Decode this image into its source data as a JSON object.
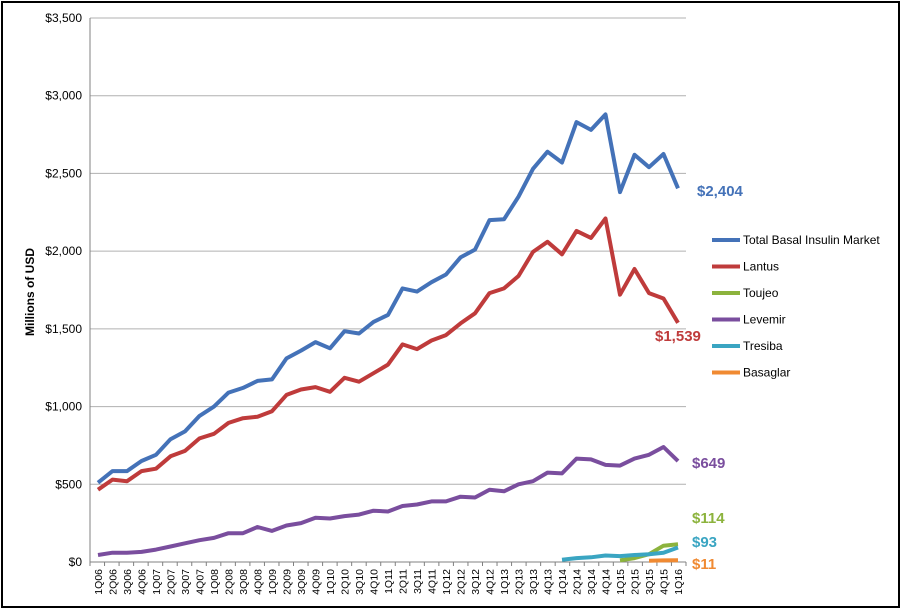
{
  "chart_data": {
    "type": "line",
    "title": "",
    "xlabel": "",
    "ylabel": "Millions of USD",
    "ylim": [
      0,
      3500
    ],
    "yticks": [
      0,
      500,
      1000,
      1500,
      2000,
      2500,
      3000,
      3500
    ],
    "ytick_labels": [
      "$0",
      "$500",
      "$1,000",
      "$1,500",
      "$2,000",
      "$2,500",
      "$3,000",
      "$3,500"
    ],
    "grid": "horizontal",
    "legend_position": "right",
    "categories": [
      "1Q06",
      "2Q06",
      "3Q06",
      "4Q06",
      "1Q07",
      "2Q07",
      "3Q07",
      "4Q07",
      "1Q08",
      "2Q08",
      "3Q08",
      "4Q08",
      "1Q09",
      "2Q09",
      "3Q09",
      "4Q09",
      "1Q10",
      "2Q10",
      "3Q10",
      "4Q10",
      "1Q11",
      "2Q11",
      "3Q11",
      "4Q11",
      "1Q12",
      "2Q12",
      "3Q12",
      "4Q12",
      "1Q13",
      "2Q13",
      "3Q13",
      "4Q13",
      "1Q14",
      "2Q14",
      "3Q14",
      "4Q14",
      "1Q15",
      "2Q15",
      "3Q15",
      "4Q15",
      "1Q16"
    ],
    "series": [
      {
        "name": "Total Basal Insulin Market",
        "color": "#4472b8",
        "end_label": "$2,404",
        "values": [
          510,
          585,
          585,
          650,
          690,
          790,
          840,
          940,
          1000,
          1090,
          1120,
          1165,
          1175,
          1310,
          1360,
          1415,
          1375,
          1485,
          1470,
          1545,
          1590,
          1760,
          1740,
          1800,
          1850,
          1960,
          2010,
          2200,
          2205,
          2350,
          2530,
          2640,
          2570,
          2830,
          2780,
          2880,
          2380,
          2620,
          2540,
          2625,
          2404
        ]
      },
      {
        "name": "Lantus",
        "color": "#bf3b3b",
        "end_label": "$1,539",
        "values": [
          465,
          530,
          520,
          585,
          600,
          680,
          715,
          795,
          825,
          895,
          925,
          935,
          970,
          1075,
          1110,
          1125,
          1095,
          1185,
          1160,
          1215,
          1270,
          1400,
          1370,
          1425,
          1460,
          1535,
          1600,
          1730,
          1760,
          1840,
          1995,
          2060,
          1980,
          2130,
          2085,
          2210,
          1720,
          1885,
          1730,
          1695,
          1539
        ]
      },
      {
        "name": "Toujeo",
        "color": "#8cb33d",
        "end_label": "$114",
        "values": [
          null,
          null,
          null,
          null,
          null,
          null,
          null,
          null,
          null,
          null,
          null,
          null,
          null,
          null,
          null,
          null,
          null,
          null,
          null,
          null,
          null,
          null,
          null,
          null,
          null,
          null,
          null,
          null,
          null,
          null,
          null,
          null,
          null,
          null,
          null,
          null,
          10,
          25,
          50,
          105,
          114
        ]
      },
      {
        "name": "Levemir",
        "color": "#7a4e9e",
        "end_label": "$649",
        "values": [
          45,
          60,
          60,
          65,
          80,
          100,
          120,
          140,
          155,
          185,
          185,
          225,
          200,
          235,
          250,
          285,
          280,
          295,
          305,
          330,
          325,
          360,
          370,
          390,
          390,
          420,
          415,
          465,
          455,
          500,
          520,
          575,
          570,
          665,
          660,
          625,
          620,
          665,
          690,
          740,
          649
        ]
      },
      {
        "name": "Tresiba",
        "color": "#3aa5c2",
        "end_label": "$93",
        "values": [
          null,
          null,
          null,
          null,
          null,
          null,
          null,
          null,
          null,
          null,
          null,
          null,
          null,
          null,
          null,
          null,
          null,
          null,
          null,
          null,
          null,
          null,
          null,
          null,
          null,
          null,
          null,
          null,
          null,
          null,
          null,
          null,
          15,
          25,
          30,
          42,
          38,
          45,
          50,
          60,
          93
        ]
      },
      {
        "name": "Basaglar",
        "color": "#f08a32",
        "end_label": "$11",
        "values": [
          null,
          null,
          null,
          null,
          null,
          null,
          null,
          null,
          null,
          null,
          null,
          null,
          null,
          null,
          null,
          null,
          null,
          null,
          null,
          null,
          null,
          null,
          null,
          null,
          null,
          null,
          null,
          null,
          null,
          null,
          null,
          null,
          null,
          null,
          null,
          null,
          null,
          null,
          8,
          10,
          11
        ]
      }
    ]
  }
}
